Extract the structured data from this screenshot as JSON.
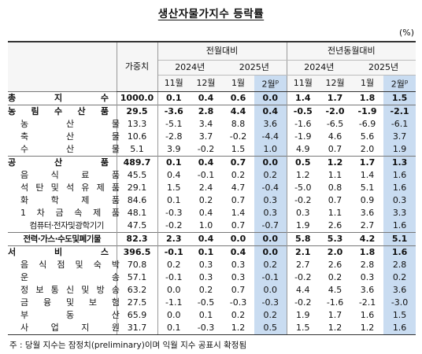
{
  "title": "생산자물가지수 등락률",
  "unit": "(%)",
  "header": {
    "weight_label": "가중치",
    "mom_label": "전월대비",
    "yoy_label": "전년동월대비",
    "year_2024": "2024년",
    "year_2025": "2025년",
    "months": [
      "11월",
      "12월",
      "1월",
      "2월"
    ],
    "prelim_mark": "p"
  },
  "rows": [
    {
      "label": "총지수",
      "weight": "1000.0",
      "mom": [
        "0.1",
        "0.4",
        "0.6",
        "0.0"
      ],
      "yoy": [
        "1.4",
        "1.7",
        "1.8",
        "1.5"
      ],
      "type": "major"
    },
    {
      "label": "농림수산품",
      "weight": "29.5",
      "mom": [
        "-3.6",
        "2.8",
        "4.4",
        "0.4"
      ],
      "yoy": [
        "-0.5",
        "-2.0",
        "-1.9",
        "-2.1"
      ],
      "type": "major"
    },
    {
      "label": "농산물",
      "weight": "13.3",
      "mom": [
        "-5.1",
        "3.4",
        "8.8",
        "3.6"
      ],
      "yoy": [
        "-1.6",
        "-6.5",
        "-6.9",
        "-6.1"
      ],
      "type": "sub"
    },
    {
      "label": "축산물",
      "weight": "10.6",
      "mom": [
        "-2.8",
        "3.7",
        "-0.2",
        "-4.4"
      ],
      "yoy": [
        "-1.9",
        "4.6",
        "5.6",
        "3.7"
      ],
      "type": "sub"
    },
    {
      "label": "수산물",
      "weight": "5.1",
      "mom": [
        "3.9",
        "-0.2",
        "1.5",
        "1.0"
      ],
      "yoy": [
        "4.9",
        "0.7",
        "2.0",
        "1.9"
      ],
      "type": "sub"
    },
    {
      "label": "공산품",
      "weight": "489.7",
      "mom": [
        "0.1",
        "0.4",
        "0.7",
        "0.0"
      ],
      "yoy": [
        "0.5",
        "1.2",
        "1.7",
        "1.3"
      ],
      "type": "major"
    },
    {
      "label": "음식료품",
      "weight": "45.5",
      "mom": [
        "0.4",
        "-0.1",
        "0.2",
        "0.2"
      ],
      "yoy": [
        "1.2",
        "1.1",
        "1.4",
        "1.6"
      ],
      "type": "sub"
    },
    {
      "label": "석탄및석유제품",
      "weight": "29.1",
      "mom": [
        "1.5",
        "2.4",
        "4.7",
        "-0.4"
      ],
      "yoy": [
        "-5.0",
        "0.8",
        "5.1",
        "1.6"
      ],
      "type": "sub"
    },
    {
      "label": "화학제품",
      "weight": "84.6",
      "mom": [
        "0.1",
        "0.2",
        "0.7",
        "0.3"
      ],
      "yoy": [
        "-0.2",
        "0.7",
        "0.9",
        "0.3"
      ],
      "type": "sub"
    },
    {
      "label": "1차금속제품",
      "weight": "48.1",
      "mom": [
        "-0.3",
        "0.4",
        "1.4",
        "0.3"
      ],
      "yoy": [
        "0.3",
        "1.1",
        "3.6",
        "3.3"
      ],
      "type": "sub"
    },
    {
      "label": "컴퓨터·전자및광학기기",
      "weight": "47.5",
      "mom": [
        "-0.2",
        "1.0",
        "0.7",
        "-0.7"
      ],
      "yoy": [
        "1.9",
        "2.6",
        "2.7",
        "1.6"
      ],
      "type": "sub"
    },
    {
      "label": "전력·가스·수도및폐기물",
      "weight": "82.3",
      "mom": [
        "2.3",
        "0.4",
        "0.0",
        "0.0"
      ],
      "yoy": [
        "5.8",
        "5.3",
        "4.2",
        "5.1"
      ],
      "type": "major"
    },
    {
      "label": "서비스",
      "weight": "396.5",
      "mom": [
        "-0.1",
        "0.1",
        "0.4",
        "0.0"
      ],
      "yoy": [
        "2.1",
        "2.0",
        "1.8",
        "1.6"
      ],
      "type": "major"
    },
    {
      "label": "음식점및숙박",
      "weight": "70.8",
      "mom": [
        "0.2",
        "0.3",
        "0.3",
        "0.2"
      ],
      "yoy": [
        "2.7",
        "2.6",
        "2.8",
        "2.8"
      ],
      "type": "sub"
    },
    {
      "label": "운송",
      "weight": "57.1",
      "mom": [
        "-0.1",
        "0.3",
        "0.3",
        "-0.1"
      ],
      "yoy": [
        "-0.2",
        "0.2",
        "0.3",
        "0.2"
      ],
      "type": "sub"
    },
    {
      "label": "정보통신및방송",
      "weight": "63.2",
      "mom": [
        "0.0",
        "0.2",
        "0.7",
        "0.0"
      ],
      "yoy": [
        "4.4",
        "4.5",
        "3.6",
        "3.6"
      ],
      "type": "sub"
    },
    {
      "label": "금융및보험",
      "weight": "27.5",
      "mom": [
        "-1.1",
        "-0.5",
        "-0.3",
        "-0.3"
      ],
      "yoy": [
        "-0.2",
        "-1.6",
        "-2.1",
        "-3.0"
      ],
      "type": "sub"
    },
    {
      "label": "부동산",
      "weight": "65.9",
      "mom": [
        "0.0",
        "0.1",
        "0.2",
        "0.2"
      ],
      "yoy": [
        "1.9",
        "1.7",
        "1.6",
        "1.5"
      ],
      "type": "sub"
    },
    {
      "label": "사업지원",
      "weight": "31.7",
      "mom": [
        "0.1",
        "-0.3",
        "1.2",
        "0.5"
      ],
      "yoy": [
        "1.5",
        "1.2",
        "1.2",
        "1.6"
      ],
      "type": "sub"
    }
  ],
  "note": "주 : 당월 지수는 잠정치(preliminary)이며 익월 지수 공표시 확정됨",
  "colors": {
    "highlight": "#c9dcf1"
  }
}
